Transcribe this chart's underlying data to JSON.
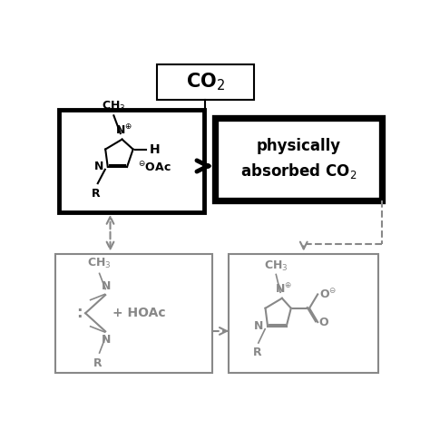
{
  "bg_color": "#ffffff",
  "black": "#000000",
  "gray": "#888888",
  "fig_size": [
    4.74,
    4.74
  ],
  "dpi": 100,
  "xlim": [
    0,
    10
  ],
  "ylim": [
    0,
    10
  ]
}
